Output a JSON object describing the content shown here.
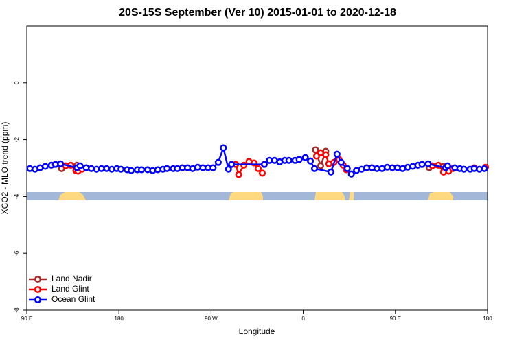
{
  "chart_data": {
    "type": "line",
    "title": "20S-15S September (Ver 10)   2015-01-01 to 2020-12-18",
    "x_label": "Longitude",
    "y_label": "XCO2 - MLO trend (ppm)",
    "xlim": [
      90,
      540
    ],
    "xticks": [
      {
        "value": 90,
        "label": "90 E"
      },
      180,
      {
        "value": 270,
        "label": "90 W"
      },
      {
        "value": 360,
        "label": "0"
      },
      {
        "value": 450,
        "label": "90 E"
      },
      {
        "value": 540,
        "label": "180"
      }
    ],
    "ylim": [
      -8,
      2
    ],
    "yticks": [
      0,
      -2,
      -4,
      -6,
      -8
    ],
    "legend": "bottom-left",
    "series": [
      {
        "name": "Land Nadir",
        "color": "#a52a2a",
        "x": [
          124,
          139,
          null,
          372,
          377,
          382,
          null,
          483,
          497
        ],
        "values": [
          -3.02,
          -2.9,
          null,
          -2.36,
          -2.92,
          -2.41,
          null,
          -2.99,
          -2.94
        ]
      },
      {
        "name": "Land Glint",
        "color": "#ff0000",
        "x": [
          128,
          133,
          138,
          140,
          144,
          null,
          294,
          297,
          302,
          307,
          312,
          316,
          320,
          null,
          373,
          377,
          382,
          385,
          390,
          395,
          399,
          402,
          null,
          486,
          492,
          497,
          502,
          506,
          null,
          527,
          538
        ],
        "values": [
          -2.92,
          -2.9,
          -3.09,
          -3.11,
          -3.04,
          null,
          -2.87,
          -3.23,
          -2.9,
          -2.77,
          -2.82,
          -3.02,
          -3.18,
          null,
          -2.58,
          -2.46,
          -2.53,
          -2.85,
          -2.8,
          -2.7,
          -2.9,
          -3.06,
          null,
          -2.92,
          -2.9,
          -3.14,
          -3.11,
          -3.02,
          null,
          -2.99,
          -2.97
        ]
      },
      {
        "name": "Ocean Glint",
        "color": "#0000ff",
        "x": [
          93,
          98,
          103,
          108,
          114,
          118,
          123,
          139,
          142,
          148,
          153,
          158,
          163,
          168,
          173,
          178,
          182,
          188,
          192,
          198,
          202,
          208,
          213,
          218,
          223,
          227,
          233,
          237,
          242,
          247,
          252,
          257,
          262,
          267,
          272,
          277,
          282,
          287,
          290,
          322,
          327,
          332,
          337,
          342,
          346,
          352,
          356,
          362,
          367,
          371,
          387,
          393,
          397,
          403,
          407,
          412,
          417,
          422,
          427,
          432,
          437,
          442,
          447,
          452,
          457,
          462,
          467,
          472,
          476,
          482,
          499,
          501,
          508,
          513,
          517,
          523,
          527,
          532,
          537
        ],
        "values": [
          -3.02,
          -3.04,
          -2.99,
          -2.94,
          -2.9,
          -2.87,
          -2.85,
          -2.99,
          -2.92,
          -2.99,
          -3.02,
          -3.04,
          -3.02,
          -3.02,
          -3.04,
          -3.02,
          -3.04,
          -3.06,
          -3.09,
          -3.06,
          -3.06,
          -3.06,
          -3.09,
          -3.06,
          -3.04,
          -3.02,
          -3.02,
          -3.02,
          -2.99,
          -2.99,
          -3.02,
          -2.97,
          -2.99,
          -2.99,
          -2.99,
          -2.8,
          -2.29,
          -3.04,
          -2.87,
          -2.87,
          -2.73,
          -2.73,
          -2.78,
          -2.73,
          -2.73,
          -2.73,
          -2.7,
          -2.63,
          -2.75,
          -3.02,
          -3.14,
          -2.51,
          -2.8,
          -3.02,
          -3.21,
          -3.09,
          -3.04,
          -2.99,
          -2.99,
          -3.02,
          -3.02,
          -2.97,
          -2.99,
          -2.99,
          -3.02,
          -2.97,
          -2.94,
          -2.9,
          -2.87,
          -2.85,
          -2.99,
          -2.92,
          -2.99,
          -3.02,
          -3.04,
          -3.04,
          -3.02,
          -3.04,
          -3.02
        ]
      }
    ]
  }
}
